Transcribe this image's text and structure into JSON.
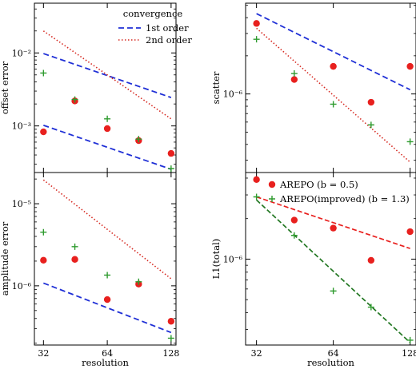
{
  "colors": {
    "first_order": "#1f2fd6",
    "second_order": "#d62a22",
    "arepo": "#e8201e",
    "arepo_improved": "#2e9b2e",
    "l1_arepo_fit": "#e8201e",
    "l1_improved_fit": "#227722"
  },
  "chart_data": [
    {
      "type": "scatter",
      "panel": "top-left",
      "xlabel": "",
      "ylabel": "offset error",
      "xscale": "log",
      "yscale": "log",
      "xlim": [
        29,
        135
      ],
      "ylim": [
        0.00023,
        0.048
      ],
      "xticks": [
        32,
        64,
        128
      ],
      "xtick_labels": [
        "",
        "",
        ""
      ],
      "yticks": [
        0.001,
        0.01
      ],
      "ytick_labels": [
        "10⁻³",
        "10⁻²"
      ],
      "legend": {
        "title": "convergence",
        "position": "top-right",
        "entries": [
          "1st order",
          "2nd order"
        ]
      },
      "lines": [
        {
          "style": "1st",
          "x": [
            32,
            128
          ],
          "y": [
            0.0098,
            0.00245
          ]
        },
        {
          "style": "1st",
          "x": [
            32,
            128
          ],
          "y": [
            0.00102,
            0.000255
          ]
        },
        {
          "style": "2nd",
          "x": [
            32,
            128
          ],
          "y": [
            0.02,
            0.00125
          ]
        }
      ],
      "series": [
        {
          "marker": "circle",
          "x": [
            32,
            45,
            64,
            90,
            128
          ],
          "y": [
            0.00083,
            0.0022,
            0.00092,
            0.00063,
            0.00042
          ]
        },
        {
          "marker": "plus",
          "x": [
            32,
            45,
            64,
            90,
            128
          ],
          "y": [
            0.0053,
            0.0023,
            0.00125,
            0.00066,
            0.00026
          ]
        }
      ]
    },
    {
      "type": "scatter",
      "panel": "top-right",
      "xlabel": "",
      "ylabel": "scatter",
      "xscale": "log",
      "yscale": "log",
      "xlim": [
        29,
        135
      ],
      "ylim": [
        2.4e-07,
        5.2e-06
      ],
      "xticks": [
        32,
        64,
        128
      ],
      "xtick_labels": [
        "",
        "",
        ""
      ],
      "yticks": [
        1e-06
      ],
      "ytick_labels": [
        "10⁻⁶"
      ],
      "lines": [
        {
          "style": "1st",
          "x": [
            32,
            128
          ],
          "y": [
            4.3e-06,
            1.08e-06
          ]
        },
        {
          "style": "2nd",
          "x": [
            32,
            128
          ],
          "y": [
            3.3e-06,
            2.9e-07
          ]
        }
      ],
      "series": [
        {
          "marker": "circle",
          "x": [
            32,
            45,
            64,
            90,
            128
          ],
          "y": [
            3.6e-06,
            1.3e-06,
            1.65e-06,
            8.6e-07,
            1.65e-06
          ]
        },
        {
          "marker": "plus",
          "x": [
            32,
            45,
            64,
            90,
            128
          ],
          "y": [
            2.7e-06,
            1.45e-06,
            8.3e-07,
            5.7e-07,
            4.2e-07
          ]
        }
      ]
    },
    {
      "type": "scatter",
      "panel": "bottom-left",
      "xlabel": "resolution",
      "ylabel": "amplitude error",
      "xscale": "log",
      "yscale": "log",
      "xlim": [
        29,
        135
      ],
      "ylim": [
        1.9e-07,
        2.4e-05
      ],
      "xticks": [
        32,
        64,
        128
      ],
      "xtick_labels": [
        "32",
        "64",
        "128"
      ],
      "yticks": [
        1e-06,
        1e-05
      ],
      "ytick_labels": [
        "10⁻⁶",
        "10⁻⁵"
      ],
      "lines": [
        {
          "style": "1st",
          "x": [
            32,
            128
          ],
          "y": [
            1.08e-06,
            2.7e-07
          ]
        },
        {
          "style": "2nd",
          "x": [
            32,
            128
          ],
          "y": [
            1.95e-05,
            1.22e-06
          ]
        }
      ],
      "series": [
        {
          "marker": "circle",
          "x": [
            32,
            45,
            64,
            90,
            128
          ],
          "y": [
            2.05e-06,
            2.1e-06,
            6.8e-07,
            1.05e-06,
            3.7e-07
          ]
        },
        {
          "marker": "plus",
          "x": [
            32,
            45,
            64,
            90,
            128
          ],
          "y": [
            4.5e-06,
            3e-06,
            1.35e-06,
            1.12e-06,
            2.3e-07
          ]
        }
      ]
    },
    {
      "type": "scatter",
      "panel": "bottom-right",
      "xlabel": "resolution",
      "ylabel": "L1(total)",
      "xscale": "log",
      "yscale": "log",
      "xlim": [
        29,
        135
      ],
      "ylim": [
        2.3e-07,
        4.4e-06
      ],
      "xticks": [
        32,
        64,
        128
      ],
      "xtick_labels": [
        "32",
        "64",
        "128"
      ],
      "yticks": [
        1e-06
      ],
      "ytick_labels": [
        "10⁻⁶"
      ],
      "legend": {
        "position": "top-right",
        "entries": [
          "AREPO (b = 0.5)",
          "AREPO(improved) (b = 1.3)"
        ]
      },
      "lines": [
        {
          "style": "fit-red",
          "x": [
            32,
            128
          ],
          "y": [
            2.9e-06,
            1.2e-06
          ]
        },
        {
          "style": "fit-green",
          "x": [
            32,
            128
          ],
          "y": [
            2.75e-06,
            2.4e-07
          ]
        }
      ],
      "series": [
        {
          "marker": "circle",
          "x": [
            32,
            45,
            64,
            90,
            128
          ],
          "y": [
            3.9e-06,
            1.95e-06,
            1.7e-06,
            9.8e-07,
            1.6e-06
          ]
        },
        {
          "marker": "plus",
          "x": [
            32,
            45,
            64,
            90,
            128
          ],
          "y": [
            2.9e-06,
            1.5e-06,
            5.8e-07,
            4.4e-07,
            2.5e-07
          ]
        }
      ]
    }
  ]
}
